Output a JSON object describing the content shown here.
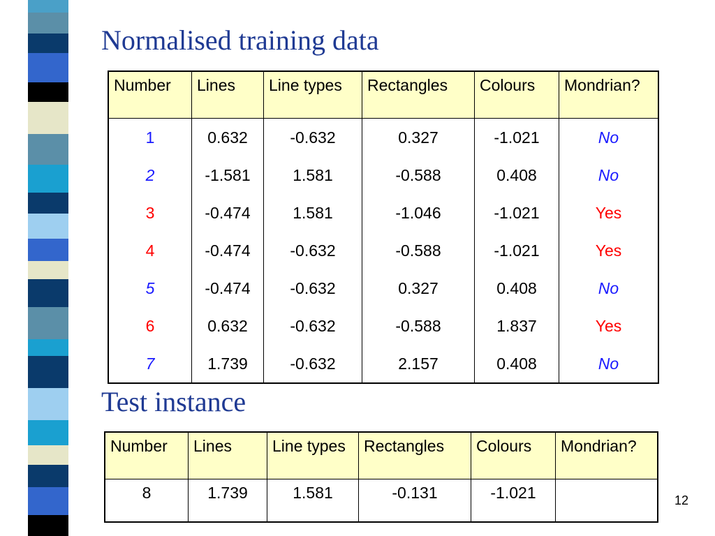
{
  "slide": {
    "title": "Normalised training data",
    "subtitle": "Test instance",
    "page_number": "12"
  },
  "colors": {
    "title": "#1f3a93",
    "header_bg": "#ffffc8",
    "no_label": "#1a1aff",
    "yes_label": "#ff0000",
    "strip": [
      "#0a3a6b",
      "#4aa0c8",
      "#3366cc",
      "#000000",
      "#e6e6c8",
      "#5b9fd6",
      "#0b5c99"
    ]
  },
  "training_table": {
    "headers": [
      "Number",
      "Lines",
      "Line types",
      "Rectangles",
      "Colours",
      "Mondrian?"
    ],
    "rows": [
      {
        "number": "1",
        "lines": "0.632",
        "line_types": "-0.632",
        "rectangles": "0.327",
        "colours": "-1.021",
        "mondrian": "No"
      },
      {
        "number": "2",
        "lines": "-1.581",
        "line_types": "1.581",
        "rectangles": "-0.588",
        "colours": "0.408",
        "mondrian": "No"
      },
      {
        "number": "3",
        "lines": "-0.474",
        "line_types": "1.581",
        "rectangles": "-1.046",
        "colours": "-1.021",
        "mondrian": "Yes"
      },
      {
        "number": "4",
        "lines": "-0.474",
        "line_types": "-0.632",
        "rectangles": "-0.588",
        "colours": "-1.021",
        "mondrian": "Yes"
      },
      {
        "number": "5",
        "lines": "-0.474",
        "line_types": "-0.632",
        "rectangles": "0.327",
        "colours": "0.408",
        "mondrian": "No"
      },
      {
        "number": "6",
        "lines": "0.632",
        "line_types": "-0.632",
        "rectangles": "-0.588",
        "colours": "1.837",
        "mondrian": "Yes"
      },
      {
        "number": "7",
        "lines": "1.739",
        "line_types": "-0.632",
        "rectangles": "2.157",
        "colours": "0.408",
        "mondrian": "No"
      }
    ]
  },
  "test_table": {
    "headers": [
      "Number",
      "Lines",
      "Line types",
      "Rectangles",
      "Colours",
      "Mondrian?"
    ],
    "row": {
      "number": "8",
      "lines": "1.739",
      "line_types": "1.581",
      "rectangles": "-0.131",
      "colours": "-1.021",
      "mondrian": ""
    }
  }
}
